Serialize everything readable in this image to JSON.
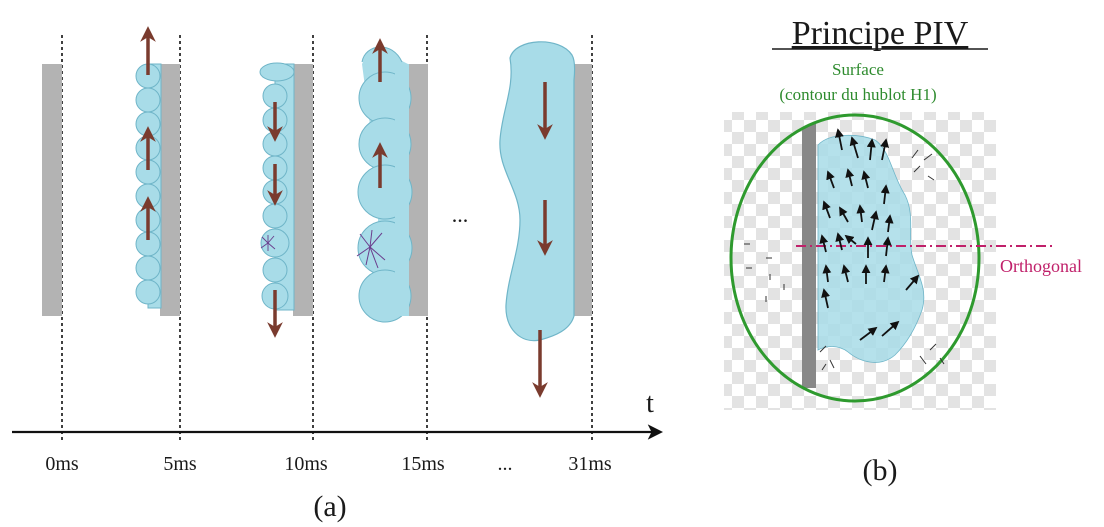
{
  "panel_a": {
    "label": "(a)",
    "axis_label": "t",
    "ellipsis": "...",
    "ticks": [
      "0ms",
      "5ms",
      "10ms",
      "15ms",
      "...",
      "31ms"
    ]
  },
  "panel_b": {
    "label": "(b)",
    "title": "Principe PIV",
    "surface_label": "Surface",
    "contour_label": "(contour du hublot H1)",
    "orthogonal_label": "Orthogonal"
  },
  "colors": {
    "liquid": "#a8dce8",
    "liquid_outline": "#6fb5c8",
    "wall": "#b3b3b3",
    "arrow": "#7a3b2e",
    "ellipse": "#2e9a2e",
    "orthogonal": "#c0206a",
    "vortex": "#6a3c8c"
  }
}
